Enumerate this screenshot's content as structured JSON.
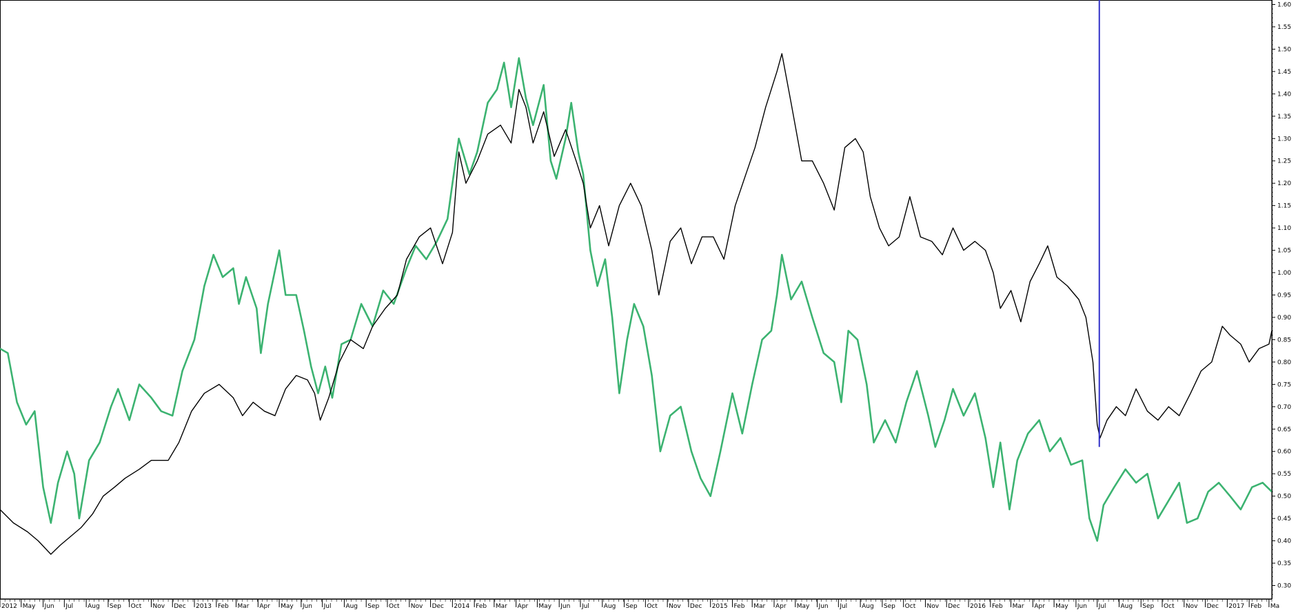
{
  "chart_data": {
    "type": "line",
    "title": "",
    "xlabel": "",
    "ylabel": "",
    "grid": false,
    "legend": "none",
    "ylim": [
      0.27,
      1.61
    ],
    "y_ticks": [
      "1.60",
      "1.55",
      "1.50",
      "1.45",
      "1.40",
      "1.35",
      "1.30",
      "1.25",
      "1.20",
      "1.15",
      "1.10",
      "1.05",
      "1.00",
      "0.95",
      "0.90",
      "0.85",
      "0.80",
      "0.75",
      "0.70",
      "0.65",
      "0.60",
      "0.55",
      "0.50",
      "0.45",
      "0.40",
      "0.35",
      "0.30"
    ],
    "x_ticks": [
      "2012",
      "May",
      "Jun",
      "Jul",
      "Aug",
      "Sep",
      "Oct",
      "Nov",
      "Dec",
      "2013",
      "Feb",
      "Mar",
      "Apr",
      "May",
      "Jun",
      "Jul",
      "Aug",
      "Sep",
      "Oct",
      "Nov",
      "Dec",
      "2014",
      "Feb",
      "Mar",
      "Apr",
      "May",
      "Jun",
      "Jul",
      "Aug",
      "Sep",
      "Oct",
      "Nov",
      "Dec",
      "2015",
      "Feb",
      "Mar",
      "Apr",
      "May",
      "Jun",
      "Jul",
      "Aug",
      "Sep",
      "Oct",
      "Nov",
      "Dec",
      "2016",
      "Feb",
      "Mar",
      "Apr",
      "May",
      "Jun",
      "Jul",
      "Aug",
      "Sep",
      "Oct",
      "Nov",
      "Dec",
      "2017",
      "Feb",
      "Ma"
    ],
    "x_range": [
      "2012-04-01",
      "2017-03-05"
    ],
    "series": [
      {
        "color": "#000000",
        "points": [
          [
            "2012-04-01",
            0.47
          ],
          [
            "2012-04-20",
            0.44
          ],
          [
            "2012-05-10",
            0.42
          ],
          [
            "2012-05-25",
            0.4
          ],
          [
            "2012-06-12",
            0.37
          ],
          [
            "2012-06-25",
            0.39
          ],
          [
            "2012-07-10",
            0.41
          ],
          [
            "2012-07-25",
            0.43
          ],
          [
            "2012-08-10",
            0.46
          ],
          [
            "2012-08-25",
            0.5
          ],
          [
            "2012-09-10",
            0.52
          ],
          [
            "2012-09-25",
            0.54
          ],
          [
            "2012-10-15",
            0.56
          ],
          [
            "2012-11-01",
            0.58
          ],
          [
            "2012-11-25",
            0.58
          ],
          [
            "2012-12-10",
            0.62
          ],
          [
            "2012-12-28",
            0.69
          ],
          [
            "2013-01-15",
            0.73
          ],
          [
            "2013-02-05",
            0.75
          ],
          [
            "2013-02-25",
            0.72
          ],
          [
            "2013-03-10",
            0.68
          ],
          [
            "2013-03-25",
            0.71
          ],
          [
            "2013-04-10",
            0.69
          ],
          [
            "2013-04-25",
            0.68
          ],
          [
            "2013-05-10",
            0.74
          ],
          [
            "2013-05-25",
            0.77
          ],
          [
            "2013-06-10",
            0.76
          ],
          [
            "2013-06-20",
            0.73
          ],
          [
            "2013-06-28",
            0.67
          ],
          [
            "2013-07-10",
            0.72
          ],
          [
            "2013-07-25",
            0.8
          ],
          [
            "2013-08-10",
            0.85
          ],
          [
            "2013-08-28",
            0.83
          ],
          [
            "2013-09-10",
            0.88
          ],
          [
            "2013-09-28",
            0.92
          ],
          [
            "2013-10-15",
            0.95
          ],
          [
            "2013-10-28",
            1.03
          ],
          [
            "2013-11-15",
            1.08
          ],
          [
            "2013-12-01",
            1.1
          ],
          [
            "2013-12-18",
            1.02
          ],
          [
            "2014-01-01",
            1.09
          ],
          [
            "2014-01-10",
            1.27
          ],
          [
            "2014-01-20",
            1.2
          ],
          [
            "2014-02-05",
            1.25
          ],
          [
            "2014-02-20",
            1.31
          ],
          [
            "2014-03-10",
            1.33
          ],
          [
            "2014-03-25",
            1.29
          ],
          [
            "2014-04-05",
            1.41
          ],
          [
            "2014-04-15",
            1.37
          ],
          [
            "2014-04-25",
            1.29
          ],
          [
            "2014-05-10",
            1.36
          ],
          [
            "2014-05-25",
            1.26
          ],
          [
            "2014-06-10",
            1.32
          ],
          [
            "2014-06-25",
            1.25
          ],
          [
            "2014-07-05",
            1.2
          ],
          [
            "2014-07-15",
            1.1
          ],
          [
            "2014-07-28",
            1.15
          ],
          [
            "2014-08-10",
            1.06
          ],
          [
            "2014-08-25",
            1.15
          ],
          [
            "2014-09-10",
            1.2
          ],
          [
            "2014-09-25",
            1.15
          ],
          [
            "2014-10-10",
            1.05
          ],
          [
            "2014-10-20",
            0.95
          ],
          [
            "2014-11-05",
            1.07
          ],
          [
            "2014-11-20",
            1.1
          ],
          [
            "2014-12-05",
            1.02
          ],
          [
            "2014-12-20",
            1.08
          ],
          [
            "2015-01-05",
            1.08
          ],
          [
            "2015-01-20",
            1.03
          ],
          [
            "2015-02-05",
            1.15
          ],
          [
            "2015-02-20",
            1.22
          ],
          [
            "2015-03-05",
            1.28
          ],
          [
            "2015-03-20",
            1.37
          ],
          [
            "2015-04-05",
            1.45
          ],
          [
            "2015-04-12",
            1.49
          ],
          [
            "2015-04-25",
            1.38
          ],
          [
            "2015-05-10",
            1.25
          ],
          [
            "2015-05-25",
            1.25
          ],
          [
            "2015-06-10",
            1.2
          ],
          [
            "2015-06-25",
            1.14
          ],
          [
            "2015-07-10",
            1.28
          ],
          [
            "2015-07-25",
            1.3
          ],
          [
            "2015-08-05",
            1.27
          ],
          [
            "2015-08-15",
            1.17
          ],
          [
            "2015-08-28",
            1.1
          ],
          [
            "2015-09-10",
            1.06
          ],
          [
            "2015-09-25",
            1.08
          ],
          [
            "2015-10-10",
            1.17
          ],
          [
            "2015-10-25",
            1.08
          ],
          [
            "2015-11-10",
            1.07
          ],
          [
            "2015-11-25",
            1.04
          ],
          [
            "2015-12-10",
            1.1
          ],
          [
            "2015-12-25",
            1.05
          ],
          [
            "2016-01-10",
            1.07
          ],
          [
            "2016-01-25",
            1.05
          ],
          [
            "2016-02-05",
            1.0
          ],
          [
            "2016-02-15",
            0.92
          ],
          [
            "2016-03-01",
            0.96
          ],
          [
            "2016-03-15",
            0.89
          ],
          [
            "2016-03-28",
            0.98
          ],
          [
            "2016-04-10",
            1.02
          ],
          [
            "2016-04-22",
            1.06
          ],
          [
            "2016-05-05",
            0.99
          ],
          [
            "2016-05-20",
            0.97
          ],
          [
            "2016-06-05",
            0.94
          ],
          [
            "2016-06-15",
            0.9
          ],
          [
            "2016-06-25",
            0.8
          ],
          [
            "2016-07-01",
            0.66
          ],
          [
            "2016-07-05",
            0.63
          ],
          [
            "2016-07-15",
            0.67
          ],
          [
            "2016-07-28",
            0.7
          ],
          [
            "2016-08-10",
            0.68
          ],
          [
            "2016-08-25",
            0.74
          ],
          [
            "2016-09-10",
            0.69
          ],
          [
            "2016-09-25",
            0.67
          ],
          [
            "2016-10-10",
            0.7
          ],
          [
            "2016-10-25",
            0.68
          ],
          [
            "2016-11-10",
            0.73
          ],
          [
            "2016-11-25",
            0.78
          ],
          [
            "2016-12-10",
            0.8
          ],
          [
            "2016-12-25",
            0.88
          ],
          [
            "2017-01-05",
            0.86
          ],
          [
            "2017-01-20",
            0.84
          ],
          [
            "2017-02-01",
            0.8
          ],
          [
            "2017-02-15",
            0.83
          ],
          [
            "2017-03-01",
            0.84
          ],
          [
            "2017-03-05",
            0.87
          ]
        ]
      },
      {
        "color": "#3cb371",
        "points": [
          [
            "2012-04-01",
            0.83
          ],
          [
            "2012-04-12",
            0.82
          ],
          [
            "2012-04-25",
            0.71
          ],
          [
            "2012-05-08",
            0.66
          ],
          [
            "2012-05-20",
            0.69
          ],
          [
            "2012-06-01",
            0.52
          ],
          [
            "2012-06-12",
            0.44
          ],
          [
            "2012-06-22",
            0.53
          ],
          [
            "2012-07-05",
            0.6
          ],
          [
            "2012-07-15",
            0.55
          ],
          [
            "2012-07-22",
            0.45
          ],
          [
            "2012-08-05",
            0.58
          ],
          [
            "2012-08-20",
            0.62
          ],
          [
            "2012-09-05",
            0.7
          ],
          [
            "2012-09-15",
            0.74
          ],
          [
            "2012-10-01",
            0.67
          ],
          [
            "2012-10-15",
            0.75
          ],
          [
            "2012-11-01",
            0.72
          ],
          [
            "2012-11-15",
            0.69
          ],
          [
            "2012-12-01",
            0.68
          ],
          [
            "2012-12-15",
            0.78
          ],
          [
            "2013-01-01",
            0.85
          ],
          [
            "2013-01-15",
            0.97
          ],
          [
            "2013-01-28",
            1.04
          ],
          [
            "2013-02-10",
            0.99
          ],
          [
            "2013-02-25",
            1.01
          ],
          [
            "2013-03-05",
            0.93
          ],
          [
            "2013-03-15",
            0.99
          ],
          [
            "2013-03-30",
            0.92
          ],
          [
            "2013-04-05",
            0.82
          ],
          [
            "2013-04-15",
            0.93
          ],
          [
            "2013-05-01",
            1.05
          ],
          [
            "2013-05-10",
            0.95
          ],
          [
            "2013-05-25",
            0.95
          ],
          [
            "2013-06-05",
            0.87
          ],
          [
            "2013-06-15",
            0.79
          ],
          [
            "2013-06-25",
            0.73
          ],
          [
            "2013-07-05",
            0.79
          ],
          [
            "2013-07-15",
            0.72
          ],
          [
            "2013-07-28",
            0.84
          ],
          [
            "2013-08-10",
            0.85
          ],
          [
            "2013-08-25",
            0.93
          ],
          [
            "2013-09-10",
            0.88
          ],
          [
            "2013-09-25",
            0.96
          ],
          [
            "2013-10-10",
            0.93
          ],
          [
            "2013-10-28",
            1.01
          ],
          [
            "2013-11-10",
            1.06
          ],
          [
            "2013-11-25",
            1.03
          ],
          [
            "2013-12-10",
            1.07
          ],
          [
            "2013-12-25",
            1.12
          ],
          [
            "2014-01-01",
            1.2
          ],
          [
            "2014-01-10",
            1.3
          ],
          [
            "2014-01-25",
            1.22
          ],
          [
            "2014-02-05",
            1.27
          ],
          [
            "2014-02-20",
            1.38
          ],
          [
            "2014-03-05",
            1.41
          ],
          [
            "2014-03-15",
            1.47
          ],
          [
            "2014-03-25",
            1.37
          ],
          [
            "2014-04-05",
            1.48
          ],
          [
            "2014-04-15",
            1.39
          ],
          [
            "2014-04-25",
            1.33
          ],
          [
            "2014-05-10",
            1.42
          ],
          [
            "2014-05-20",
            1.25
          ],
          [
            "2014-05-28",
            1.21
          ],
          [
            "2014-06-10",
            1.3
          ],
          [
            "2014-06-18",
            1.38
          ],
          [
            "2014-06-28",
            1.27
          ],
          [
            "2014-07-05",
            1.22
          ],
          [
            "2014-07-15",
            1.05
          ],
          [
            "2014-07-25",
            0.97
          ],
          [
            "2014-08-05",
            1.03
          ],
          [
            "2014-08-15",
            0.9
          ],
          [
            "2014-08-25",
            0.73
          ],
          [
            "2014-09-05",
            0.85
          ],
          [
            "2014-09-15",
            0.93
          ],
          [
            "2014-09-28",
            0.88
          ],
          [
            "2014-10-10",
            0.77
          ],
          [
            "2014-10-22",
            0.6
          ],
          [
            "2014-11-05",
            0.68
          ],
          [
            "2014-11-20",
            0.7
          ],
          [
            "2014-12-05",
            0.6
          ],
          [
            "2014-12-18",
            0.54
          ],
          [
            "2015-01-01",
            0.5
          ],
          [
            "2015-01-15",
            0.6
          ],
          [
            "2015-02-01",
            0.73
          ],
          [
            "2015-02-15",
            0.64
          ],
          [
            "2015-03-01",
            0.75
          ],
          [
            "2015-03-15",
            0.85
          ],
          [
            "2015-03-28",
            0.87
          ],
          [
            "2015-04-05",
            0.95
          ],
          [
            "2015-04-12",
            1.04
          ],
          [
            "2015-04-25",
            0.94
          ],
          [
            "2015-05-10",
            0.98
          ],
          [
            "2015-05-25",
            0.9
          ],
          [
            "2015-06-10",
            0.82
          ],
          [
            "2015-06-25",
            0.8
          ],
          [
            "2015-07-05",
            0.71
          ],
          [
            "2015-07-15",
            0.87
          ],
          [
            "2015-07-28",
            0.85
          ],
          [
            "2015-08-10",
            0.75
          ],
          [
            "2015-08-20",
            0.62
          ],
          [
            "2015-09-05",
            0.67
          ],
          [
            "2015-09-20",
            0.62
          ],
          [
            "2015-10-05",
            0.71
          ],
          [
            "2015-10-20",
            0.78
          ],
          [
            "2015-11-05",
            0.68
          ],
          [
            "2015-11-15",
            0.61
          ],
          [
            "2015-11-28",
            0.67
          ],
          [
            "2015-12-10",
            0.74
          ],
          [
            "2015-12-25",
            0.68
          ],
          [
            "2016-01-10",
            0.73
          ],
          [
            "2016-01-25",
            0.63
          ],
          [
            "2016-02-05",
            0.52
          ],
          [
            "2016-02-15",
            0.62
          ],
          [
            "2016-02-28",
            0.47
          ],
          [
            "2016-03-10",
            0.58
          ],
          [
            "2016-03-25",
            0.64
          ],
          [
            "2016-04-10",
            0.67
          ],
          [
            "2016-04-25",
            0.6
          ],
          [
            "2016-05-10",
            0.63
          ],
          [
            "2016-05-25",
            0.57
          ],
          [
            "2016-06-10",
            0.58
          ],
          [
            "2016-06-20",
            0.45
          ],
          [
            "2016-07-01",
            0.4
          ],
          [
            "2016-07-10",
            0.48
          ],
          [
            "2016-07-25",
            0.52
          ],
          [
            "2016-08-10",
            0.56
          ],
          [
            "2016-08-25",
            0.53
          ],
          [
            "2016-09-10",
            0.55
          ],
          [
            "2016-09-25",
            0.45
          ],
          [
            "2016-10-10",
            0.49
          ],
          [
            "2016-10-25",
            0.53
          ],
          [
            "2016-11-05",
            0.44
          ],
          [
            "2016-11-20",
            0.45
          ],
          [
            "2016-12-05",
            0.51
          ],
          [
            "2016-12-20",
            0.53
          ],
          [
            "2017-01-05",
            0.5
          ],
          [
            "2017-01-20",
            0.47
          ],
          [
            "2017-02-05",
            0.52
          ],
          [
            "2017-02-20",
            0.53
          ],
          [
            "2017-03-05",
            0.51
          ]
        ]
      }
    ],
    "vertical_marker": {
      "date": "2016-07-04",
      "color": "#3030c8",
      "y_from": 0.61,
      "y_to": 1.61
    }
  }
}
